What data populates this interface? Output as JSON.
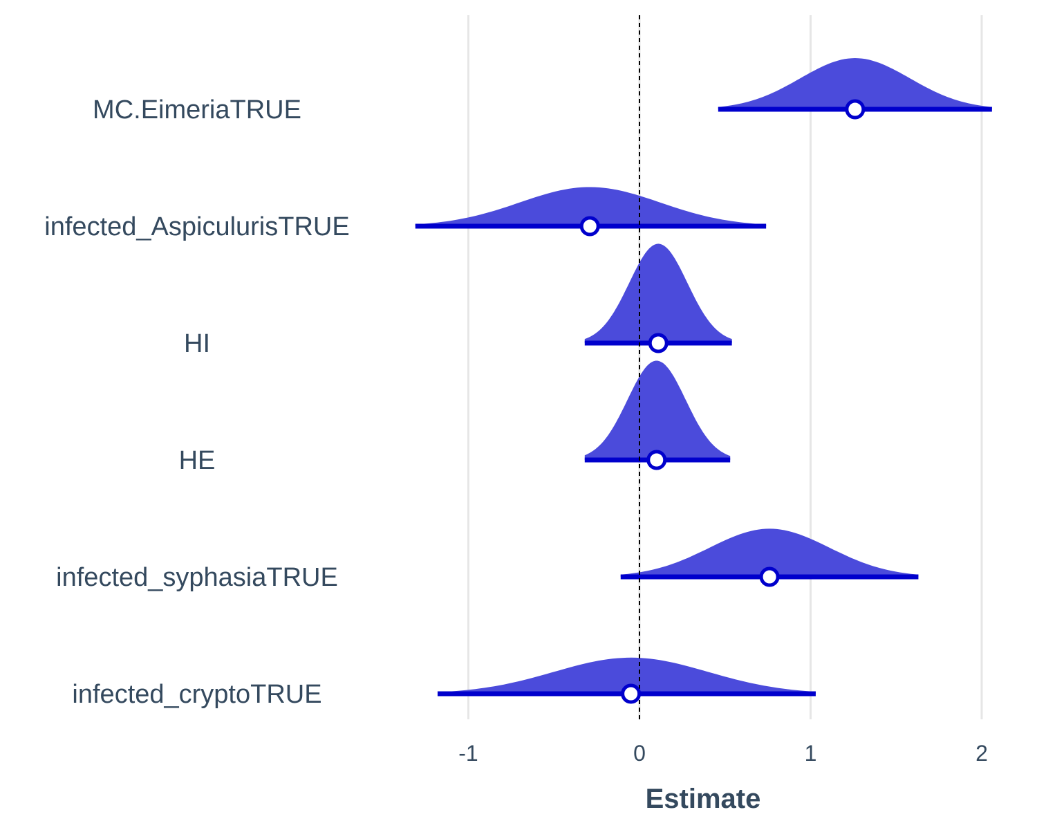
{
  "chart_data": {
    "type": "density-interval",
    "xlabel": "Estimate",
    "xlim": [
      -1.3,
      2.05
    ],
    "xticks": [
      -1,
      0,
      1,
      2
    ],
    "xtick_labels": [
      "-1",
      "0",
      "1",
      "2"
    ],
    "reference_line": 0,
    "grid": "vertical-major",
    "colors": {
      "fill": "#4b4bdb",
      "line": "#0000cc",
      "grid": "#e6e6e6",
      "text": "#34495e"
    },
    "categories": [
      "MC.EimeriaTRUE",
      "infected_AspiculurisTRUE",
      "HI",
      "HE",
      "infected_syphasiaTRUE",
      "infected_cryptoTRUE"
    ],
    "series": [
      {
        "category": "MC.EimeriaTRUE",
        "estimate": 1.26,
        "lower": 0.46,
        "upper": 2.06,
        "sd": 0.32,
        "rel_height": 0.34
      },
      {
        "category": "infected_AspiculurisTRUE",
        "estimate": -0.29,
        "lower": -1.31,
        "upper": 0.74,
        "sd": 0.41,
        "rel_height": 0.26
      },
      {
        "category": "HI",
        "estimate": 0.11,
        "lower": -0.32,
        "upper": 0.54,
        "sd": 0.17,
        "rel_height": 0.66
      },
      {
        "category": "HE",
        "estimate": 0.1,
        "lower": -0.32,
        "upper": 0.53,
        "sd": 0.17,
        "rel_height": 0.66
      },
      {
        "category": "infected_syphasiaTRUE",
        "estimate": 0.76,
        "lower": -0.11,
        "upper": 1.63,
        "sd": 0.35,
        "rel_height": 0.32
      },
      {
        "category": "infected_cryptoTRUE",
        "estimate": -0.05,
        "lower": -1.18,
        "upper": 1.03,
        "sd": 0.45,
        "rel_height": 0.24
      }
    ]
  }
}
